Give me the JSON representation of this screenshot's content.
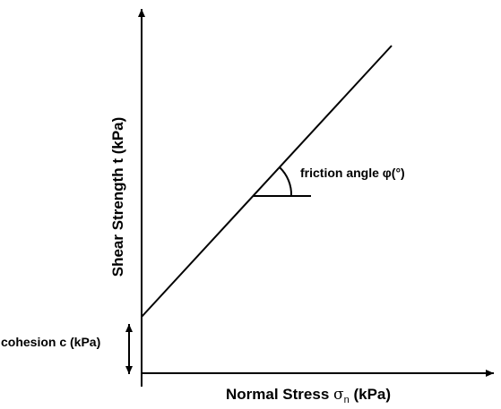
{
  "axes": {
    "x_label_main": "Normal Stress ",
    "x_label_symbol": "σ",
    "x_label_subscript": "n",
    "x_label_unit": " (kPa)",
    "y_label": "Shear Strength t (kPa)"
  },
  "annotations": {
    "friction_angle": "friction angle φ(°)",
    "cohesion": "cohesion c (kPa)"
  },
  "colors": {
    "stroke": "#000000",
    "background": "#ffffff"
  }
}
